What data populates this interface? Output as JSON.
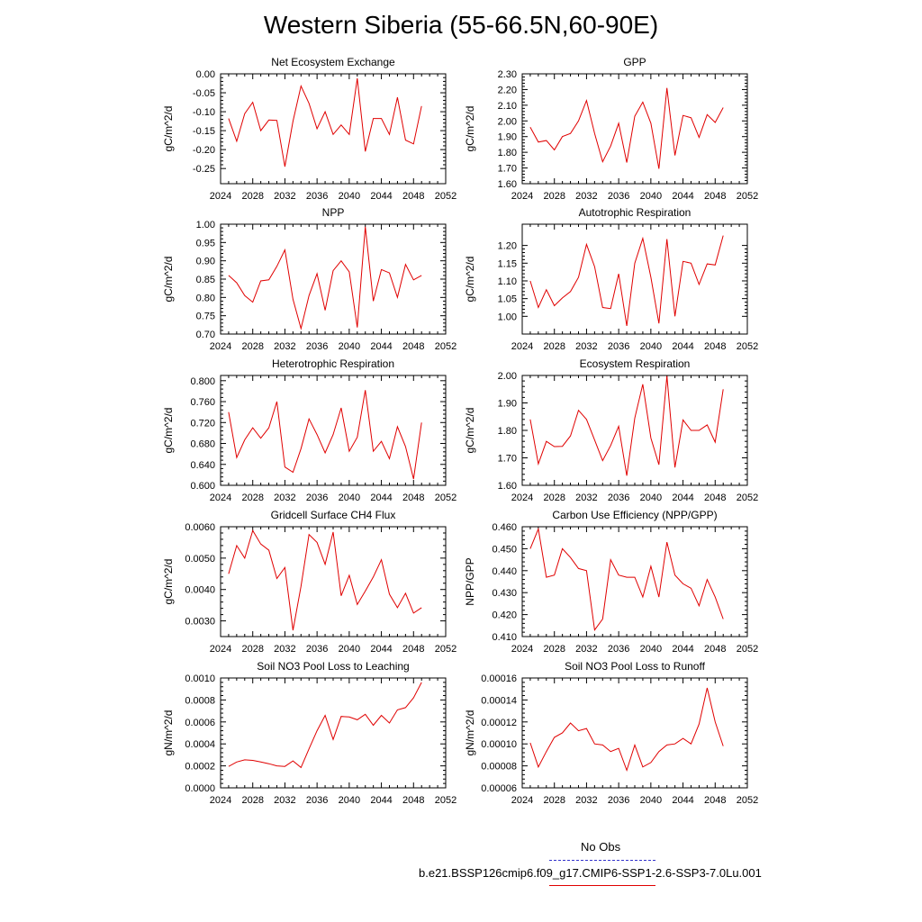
{
  "title": "Western Siberia (55-66.5N,60-90E)",
  "legend": {
    "obs_label": "No Obs",
    "model_label": "b.e21.BSSP126cmip6.f09_g17.CMIP6-SSP1-2.6-SSP3-7.0Lu.001",
    "obs_color": "#3333cc",
    "model_color": "#e00000"
  },
  "chart_data": [
    {
      "type": "line",
      "title": "Net Ecosystem Exchange",
      "ylabel": "gC/m^2/d",
      "xlim": [
        2024,
        2052
      ],
      "xticks": [
        "2024",
        "2028",
        "2032",
        "2036",
        "2040",
        "2044",
        "2048",
        "2052"
      ],
      "ylim": [
        -0.29,
        0.0
      ],
      "yticks": [
        "0.00",
        "-0.05",
        "-0.10",
        "-0.15",
        "-0.20",
        "-0.25"
      ],
      "ytick_values": [
        0.0,
        -0.05,
        -0.1,
        -0.15,
        -0.2,
        -0.25
      ],
      "x": [
        2025,
        2026,
        2027,
        2028,
        2029,
        2030,
        2031,
        2032,
        2033,
        2034,
        2035,
        2036,
        2037,
        2038,
        2039,
        2040,
        2041,
        2042,
        2043,
        2044,
        2045,
        2046,
        2047,
        2048,
        2049
      ],
      "series": [
        {
          "values": [
            -0.118,
            -0.178,
            -0.105,
            -0.075,
            -0.15,
            -0.122,
            -0.123,
            -0.245,
            -0.125,
            -0.032,
            -0.078,
            -0.145,
            -0.1,
            -0.16,
            -0.135,
            -0.16,
            -0.012,
            -0.205,
            -0.118,
            -0.118,
            -0.16,
            -0.062,
            -0.175,
            -0.185,
            -0.085
          ]
        }
      ]
    },
    {
      "type": "line",
      "title": "GPP",
      "ylabel": "gC/m^2/d",
      "xlim": [
        2024,
        2052
      ],
      "xticks": [
        "2024",
        "2028",
        "2032",
        "2036",
        "2040",
        "2044",
        "2048",
        "2052"
      ],
      "ylim": [
        1.6,
        2.3
      ],
      "yticks": [
        "1.60",
        "1.70",
        "1.80",
        "1.90",
        "2.00",
        "2.10",
        "2.20",
        "2.30"
      ],
      "ytick_values": [
        1.6,
        1.7,
        1.8,
        1.9,
        2.0,
        2.1,
        2.2,
        2.3
      ],
      "x": [
        2025,
        2026,
        2027,
        2028,
        2029,
        2030,
        2031,
        2032,
        2033,
        2034,
        2035,
        2036,
        2037,
        2038,
        2039,
        2040,
        2041,
        2042,
        2043,
        2044,
        2045,
        2046,
        2047,
        2048,
        2049
      ],
      "series": [
        {
          "values": [
            1.96,
            1.865,
            1.875,
            1.815,
            1.9,
            1.92,
            2.0,
            2.13,
            1.92,
            1.74,
            1.84,
            1.985,
            1.735,
            2.03,
            2.12,
            1.985,
            1.695,
            2.21,
            1.78,
            2.035,
            2.02,
            1.895,
            2.04,
            1.99,
            2.085
          ]
        }
      ]
    },
    {
      "type": "line",
      "title": "NPP",
      "ylabel": "gC/m^2/d",
      "xlim": [
        2024,
        2052
      ],
      "xticks": [
        "2024",
        "2028",
        "2032",
        "2036",
        "2040",
        "2044",
        "2048",
        "2052"
      ],
      "ylim": [
        0.7,
        1.0
      ],
      "yticks": [
        "0.70",
        "0.75",
        "0.80",
        "0.85",
        "0.90",
        "0.95",
        "1.00"
      ],
      "ytick_values": [
        0.7,
        0.75,
        0.8,
        0.85,
        0.9,
        0.95,
        1.0
      ],
      "x": [
        2025,
        2026,
        2027,
        2028,
        2029,
        2030,
        2031,
        2032,
        2033,
        2034,
        2035,
        2036,
        2037,
        2038,
        2039,
        2040,
        2041,
        2042,
        2043,
        2044,
        2045,
        2046,
        2047,
        2048,
        2049
      ],
      "series": [
        {
          "values": [
            0.86,
            0.84,
            0.805,
            0.787,
            0.845,
            0.848,
            0.885,
            0.93,
            0.795,
            0.715,
            0.805,
            0.865,
            0.765,
            0.873,
            0.9,
            0.87,
            0.718,
            0.993,
            0.79,
            0.876,
            0.867,
            0.8,
            0.89,
            0.848,
            0.86
          ]
        }
      ]
    },
    {
      "type": "line",
      "title": "Autotrophic Respiration",
      "ylabel": "gC/m^2/d",
      "xlim": [
        2024,
        2052
      ],
      "xticks": [
        "2024",
        "2028",
        "2032",
        "2036",
        "2040",
        "2044",
        "2048",
        "2052"
      ],
      "ylim": [
        0.95,
        1.26
      ],
      "yticks": [
        "1.00",
        "1.05",
        "1.10",
        "1.15",
        "1.20"
      ],
      "ytick_values": [
        1.0,
        1.05,
        1.1,
        1.15,
        1.2
      ],
      "x": [
        2025,
        2026,
        2027,
        2028,
        2029,
        2030,
        2031,
        2032,
        2033,
        2034,
        2035,
        2036,
        2037,
        2038,
        2039,
        2040,
        2041,
        2042,
        2043,
        2044,
        2045,
        2046,
        2047,
        2048,
        2049
      ],
      "series": [
        {
          "values": [
            1.1,
            1.025,
            1.075,
            1.03,
            1.052,
            1.07,
            1.11,
            1.203,
            1.14,
            1.025,
            1.022,
            1.12,
            0.973,
            1.15,
            1.22,
            1.11,
            0.98,
            1.218,
            1.0,
            1.155,
            1.15,
            1.09,
            1.148,
            1.145,
            1.228
          ]
        }
      ]
    },
    {
      "type": "line",
      "title": "Heterotrophic Respiration",
      "ylabel": "gC/m^2/d",
      "xlim": [
        2024,
        2052
      ],
      "xticks": [
        "2024",
        "2028",
        "2032",
        "2036",
        "2040",
        "2044",
        "2048",
        "2052"
      ],
      "ylim": [
        0.6,
        0.81
      ],
      "yticks": [
        "0.600",
        "0.640",
        "0.680",
        "0.720",
        "0.760",
        "0.800"
      ],
      "ytick_values": [
        0.6,
        0.64,
        0.68,
        0.72,
        0.76,
        0.8
      ],
      "x": [
        2025,
        2026,
        2027,
        2028,
        2029,
        2030,
        2031,
        2032,
        2033,
        2034,
        2035,
        2036,
        2037,
        2038,
        2039,
        2040,
        2041,
        2042,
        2043,
        2044,
        2045,
        2046,
        2047,
        2048,
        2049
      ],
      "series": [
        {
          "values": [
            0.74,
            0.653,
            0.687,
            0.71,
            0.69,
            0.71,
            0.76,
            0.635,
            0.625,
            0.67,
            0.727,
            0.697,
            0.662,
            0.697,
            0.748,
            0.665,
            0.692,
            0.782,
            0.665,
            0.684,
            0.651,
            0.712,
            0.674,
            0.612,
            0.72
          ]
        }
      ]
    },
    {
      "type": "line",
      "title": "Ecosystem Respiration",
      "ylabel": "gC/m^2/d",
      "xlim": [
        2024,
        2052
      ],
      "xticks": [
        "2024",
        "2028",
        "2032",
        "2036",
        "2040",
        "2044",
        "2048",
        "2052"
      ],
      "ylim": [
        1.6,
        2.0
      ],
      "yticks": [
        "1.60",
        "1.70",
        "1.80",
        "1.90",
        "2.00"
      ],
      "ytick_values": [
        1.6,
        1.7,
        1.8,
        1.9,
        2.0
      ],
      "x": [
        2025,
        2026,
        2027,
        2028,
        2029,
        2030,
        2031,
        2032,
        2033,
        2034,
        2035,
        2036,
        2037,
        2038,
        2039,
        2040,
        2041,
        2042,
        2043,
        2044,
        2045,
        2046,
        2047,
        2048,
        2049
      ],
      "series": [
        {
          "values": [
            1.84,
            1.678,
            1.76,
            1.741,
            1.742,
            1.78,
            1.873,
            1.84,
            1.765,
            1.69,
            1.745,
            1.815,
            1.635,
            1.845,
            1.968,
            1.772,
            1.675,
            1.998,
            1.665,
            1.838,
            1.8,
            1.8,
            1.82,
            1.757,
            1.95
          ]
        }
      ]
    },
    {
      "type": "line",
      "title": "Gridcell Surface CH4 Flux",
      "ylabel": "gC/m^2/d",
      "xlim": [
        2024,
        2052
      ],
      "xticks": [
        "2024",
        "2028",
        "2032",
        "2036",
        "2040",
        "2044",
        "2048",
        "2052"
      ],
      "ylim": [
        0.0025,
        0.006
      ],
      "yticks": [
        "0.0030",
        "0.0040",
        "0.0050",
        "0.0060"
      ],
      "ytick_values": [
        0.003,
        0.004,
        0.005,
        0.006
      ],
      "x": [
        2025,
        2026,
        2027,
        2028,
        2029,
        2030,
        2031,
        2032,
        2033,
        2034,
        2035,
        2036,
        2037,
        2038,
        2039,
        2040,
        2041,
        2042,
        2043,
        2044,
        2045,
        2046,
        2047,
        2048,
        2049
      ],
      "series": [
        {
          "values": [
            0.0045,
            0.0054,
            0.005,
            0.00588,
            0.00545,
            0.00525,
            0.00435,
            0.0047,
            0.0027,
            0.0041,
            0.00575,
            0.0055,
            0.0048,
            0.00583,
            0.0038,
            0.00445,
            0.00352,
            0.00395,
            0.0044,
            0.00495,
            0.00385,
            0.00342,
            0.00388,
            0.00325,
            0.00342
          ]
        }
      ]
    },
    {
      "type": "line",
      "title": "Carbon Use Efficiency (NPP/GPP)",
      "ylabel": "NPP/GPP",
      "xlim": [
        2024,
        2052
      ],
      "xticks": [
        "2024",
        "2028",
        "2032",
        "2036",
        "2040",
        "2044",
        "2048",
        "2052"
      ],
      "ylim": [
        0.41,
        0.46
      ],
      "yticks": [
        "0.410",
        "0.420",
        "0.430",
        "0.440",
        "0.450",
        "0.460"
      ],
      "ytick_values": [
        0.41,
        0.42,
        0.43,
        0.44,
        0.45,
        0.46
      ],
      "x": [
        2025,
        2026,
        2027,
        2028,
        2029,
        2030,
        2031,
        2032,
        2033,
        2034,
        2035,
        2036,
        2037,
        2038,
        2039,
        2040,
        2041,
        2042,
        2043,
        2044,
        2045,
        2046,
        2047,
        2048,
        2049
      ],
      "series": [
        {
          "values": [
            0.45,
            0.459,
            0.437,
            0.438,
            0.45,
            0.446,
            0.441,
            0.44,
            0.413,
            0.418,
            0.445,
            0.438,
            0.437,
            0.437,
            0.428,
            0.442,
            0.428,
            0.453,
            0.438,
            0.434,
            0.432,
            0.424,
            0.436,
            0.428,
            0.418
          ]
        }
      ]
    },
    {
      "type": "line",
      "title": "Soil NO3 Pool Loss to Leaching",
      "ylabel": "gN/m^2/d",
      "xlim": [
        2024,
        2052
      ],
      "xticks": [
        "2024",
        "2028",
        "2032",
        "2036",
        "2040",
        "2044",
        "2048",
        "2052"
      ],
      "ylim": [
        0.0,
        0.001
      ],
      "yticks": [
        "0.0000",
        "0.0002",
        "0.0004",
        "0.0006",
        "0.0008",
        "0.0010"
      ],
      "ytick_values": [
        0.0,
        0.0002,
        0.0004,
        0.0006,
        0.0008,
        0.001
      ],
      "x": [
        2025,
        2026,
        2027,
        2028,
        2029,
        2030,
        2031,
        2032,
        2033,
        2034,
        2035,
        2036,
        2037,
        2038,
        2039,
        2040,
        2041,
        2042,
        2043,
        2044,
        2045,
        2046,
        2047,
        2048,
        2049
      ],
      "series": [
        {
          "values": [
            0.000195,
            0.000235,
            0.000255,
            0.00025,
            0.000235,
            0.00022,
            0.0002,
            0.000195,
            0.000245,
            0.000185,
            0.000355,
            0.00052,
            0.00066,
            0.00044,
            0.00065,
            0.000645,
            0.00062,
            0.00067,
            0.00057,
            0.00066,
            0.00059,
            0.00071,
            0.00073,
            0.00082,
            0.00096
          ]
        }
      ]
    },
    {
      "type": "line",
      "title": "Soil NO3 Pool Loss to Runoff",
      "ylabel": "gN/m^2/d",
      "xlim": [
        2024,
        2052
      ],
      "xticks": [
        "2024",
        "2028",
        "2032",
        "2036",
        "2040",
        "2044",
        "2048",
        "2052"
      ],
      "ylim": [
        6e-05,
        0.00016
      ],
      "yticks": [
        "0.00006",
        "0.00008",
        "0.00010",
        "0.00012",
        "0.00014",
        "0.00016"
      ],
      "ytick_values": [
        6e-05,
        8e-05,
        0.0001,
        0.00012,
        0.00014,
        0.00016
      ],
      "x": [
        2025,
        2026,
        2027,
        2028,
        2029,
        2030,
        2031,
        2032,
        2033,
        2034,
        2035,
        2036,
        2037,
        2038,
        2039,
        2040,
        2041,
        2042,
        2043,
        2044,
        2045,
        2046,
        2047,
        2048,
        2049
      ],
      "series": [
        {
          "values": [
            0.000101,
            7.9e-05,
            9.3e-05,
            0.000106,
            0.00011,
            0.000119,
            0.000112,
            0.000114,
            0.0001,
            9.9e-05,
            9.3e-05,
            9.6e-05,
            7.6e-05,
            9.9e-05,
            7.9e-05,
            8.3e-05,
            9.3e-05,
            9.9e-05,
            0.0001,
            0.000105,
            0.0001,
            0.000118,
            0.000151,
            0.00012,
            9.8e-05
          ]
        }
      ]
    }
  ]
}
